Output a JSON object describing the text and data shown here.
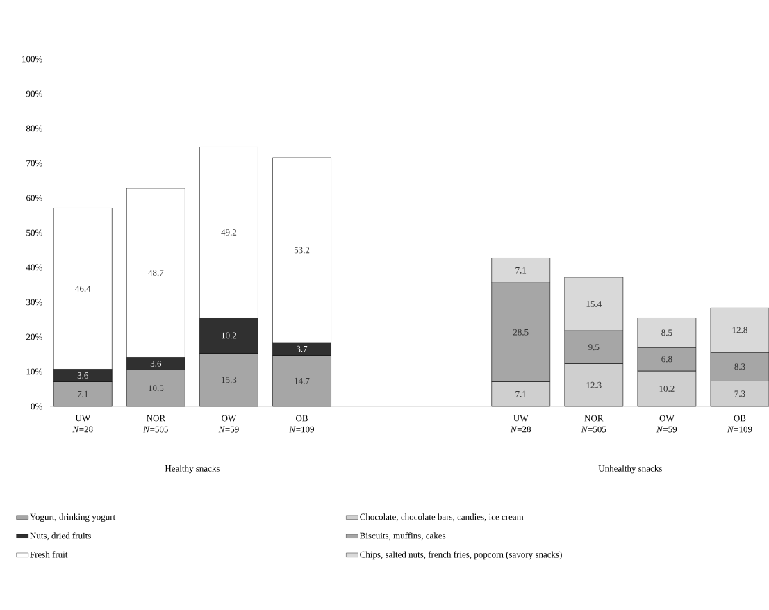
{
  "chart_data": {
    "type": "bar",
    "stacked": true,
    "data_labels": true,
    "legend": "bottom",
    "categories": [
      "UW *N*=28",
      "NOR *N*=505",
      "OW *N*=59",
      "OB *N*=109",
      null,
      null,
      "UW *N*=28",
      "NOR *N*=505",
      "OW *N*=59",
      "OB *N*=109"
    ],
    "ylim": [
      0,
      100
    ],
    "yticks": [
      {
        "value": 0,
        "label": "0%"
      },
      {
        "value": 10,
        "label": "10%"
      },
      {
        "value": 20,
        "label": "20%"
      },
      {
        "value": 30,
        "label": "30%"
      },
      {
        "value": 40,
        "label": "40%"
      },
      {
        "value": 50,
        "label": "50%"
      },
      {
        "value": 60,
        "label": "60%"
      },
      {
        "value": 70,
        "label": "70%"
      },
      {
        "value": 80,
        "label": "80%"
      },
      {
        "value": 90,
        "label": "90%"
      },
      {
        "value": 100,
        "label": "100%"
      }
    ],
    "series": [
      {
        "name": "Yogurt, drinking yogurt",
        "color": "#a6a6a6",
        "values": [
          7.1,
          10.5,
          15.3,
          14.7,
          null,
          null,
          null,
          null,
          null,
          null
        ]
      },
      {
        "name": "Chocolate, chocolate bars, candies, ice cream",
        "color": "#cfcfcf",
        "values": [
          null,
          null,
          null,
          null,
          null,
          null,
          7.1,
          12.3,
          10.2,
          7.3
        ]
      },
      {
        "name": "Nuts, dried fruits",
        "color": "#303030",
        "values": [
          3.6,
          3.6,
          10.2,
          3.7,
          null,
          null,
          null,
          null,
          null,
          null
        ]
      },
      {
        "name": "Biscuits, muffins, cakes",
        "color": "#a6a6a6",
        "values": [
          null,
          null,
          null,
          null,
          null,
          null,
          28.5,
          9.5,
          6.8,
          8.3
        ]
      },
      {
        "name": "Fresh fruit",
        "color": "#ffffff",
        "values": [
          46.4,
          48.7,
          49.2,
          53.2,
          null,
          null,
          null,
          null,
          null,
          null
        ]
      },
      {
        "name": "Chips, salted nuts, french fries, popcorn (savory snacks)",
        "color": "#d9d9d9",
        "values": [
          null,
          null,
          null,
          null,
          null,
          null,
          7.1,
          15.4,
          8.5,
          12.8
        ]
      }
    ],
    "annotations": [
      "Healthy snacks",
      "Unhealthy snacks"
    ]
  }
}
